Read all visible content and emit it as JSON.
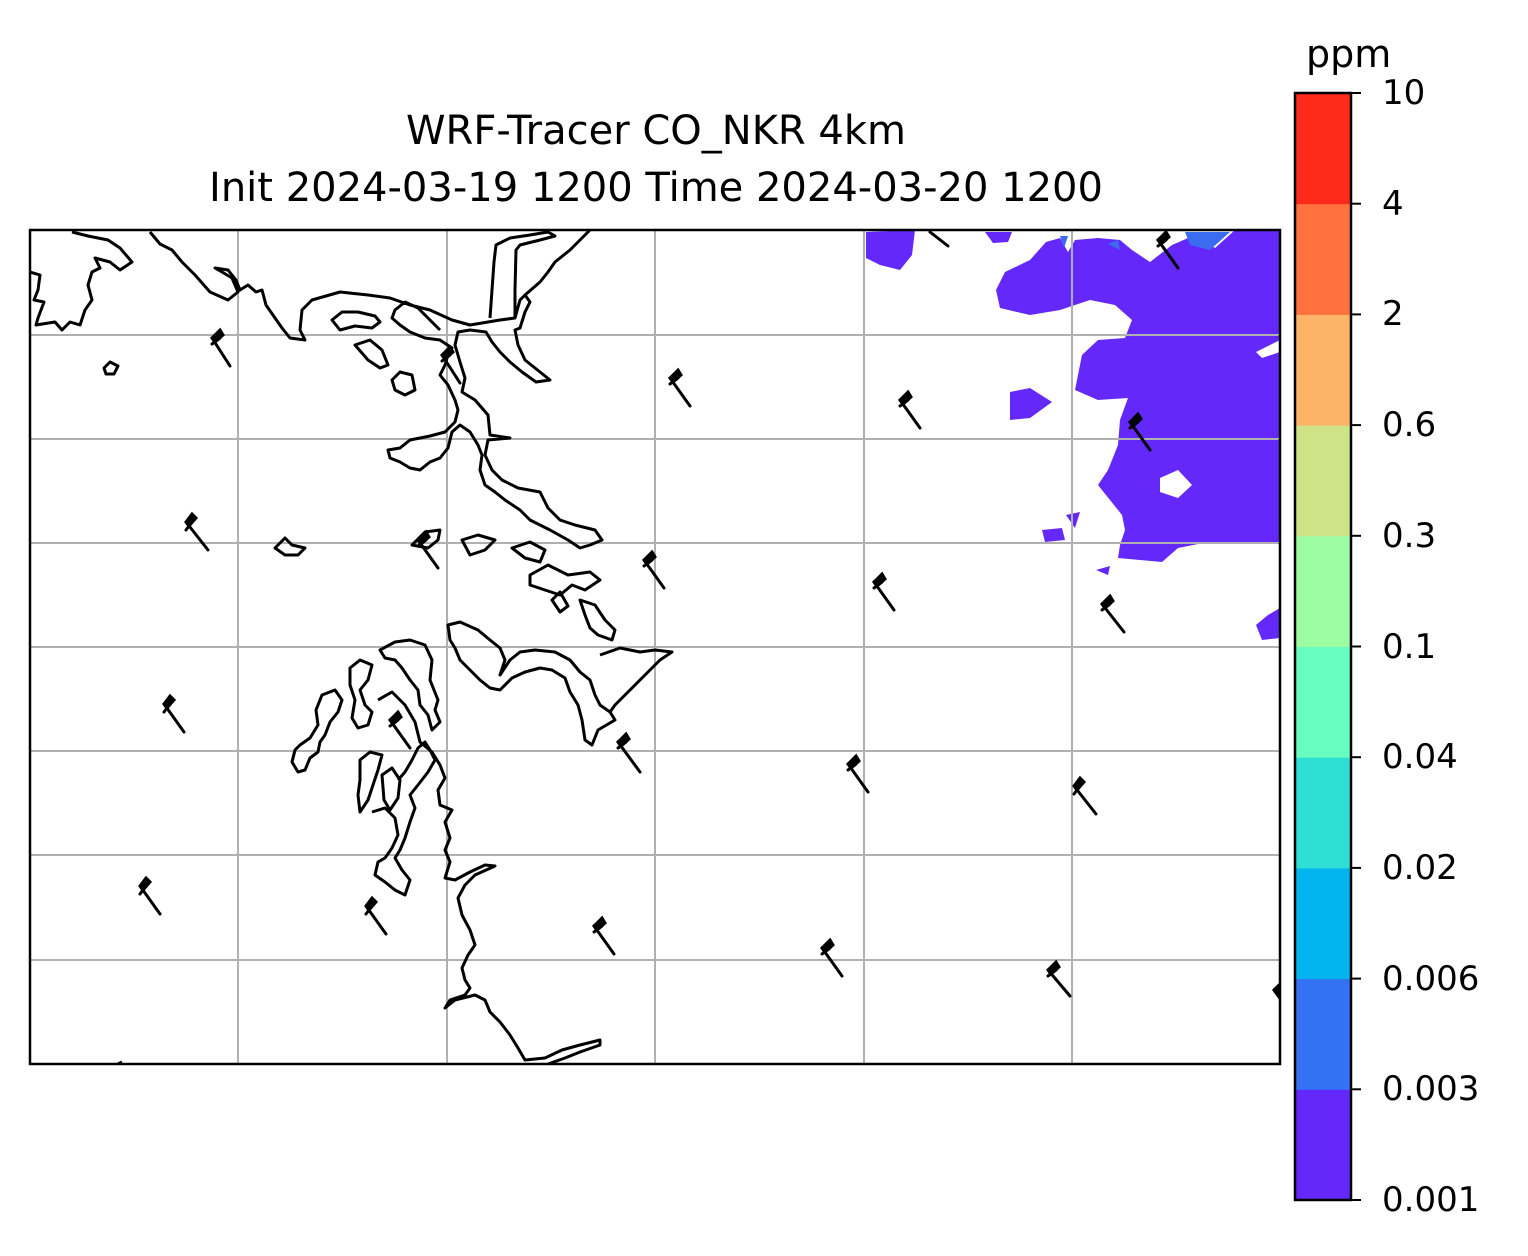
{
  "figure": {
    "title_line1": "WRF-Tracer CO_NKR 4km",
    "title_line2": "Init 2024-03-19 1200 Time 2024-03-20 1200"
  },
  "map": {
    "gridlines": true,
    "coastline_color": "#000000",
    "gridline_color": "#b0b0b0",
    "field_color": "#6428fa",
    "field_color_secondary": "#3b6cf0",
    "wind_barbs": true
  },
  "colorbar": {
    "unit": "ppm",
    "orientation": "vertical",
    "placement": "right",
    "levels": [
      "0.001",
      "0.003",
      "0.006",
      "0.02",
      "0.04",
      "0.1",
      "0.3",
      "0.6",
      "2",
      "4",
      "10"
    ],
    "colors": [
      "#6428fa",
      "#3372f3",
      "#02b5ee",
      "#2fdfd6",
      "#67fdc0",
      "#9bfca2",
      "#cee286",
      "#fdb467",
      "#ff7240",
      "#ff2a19"
    ]
  }
}
